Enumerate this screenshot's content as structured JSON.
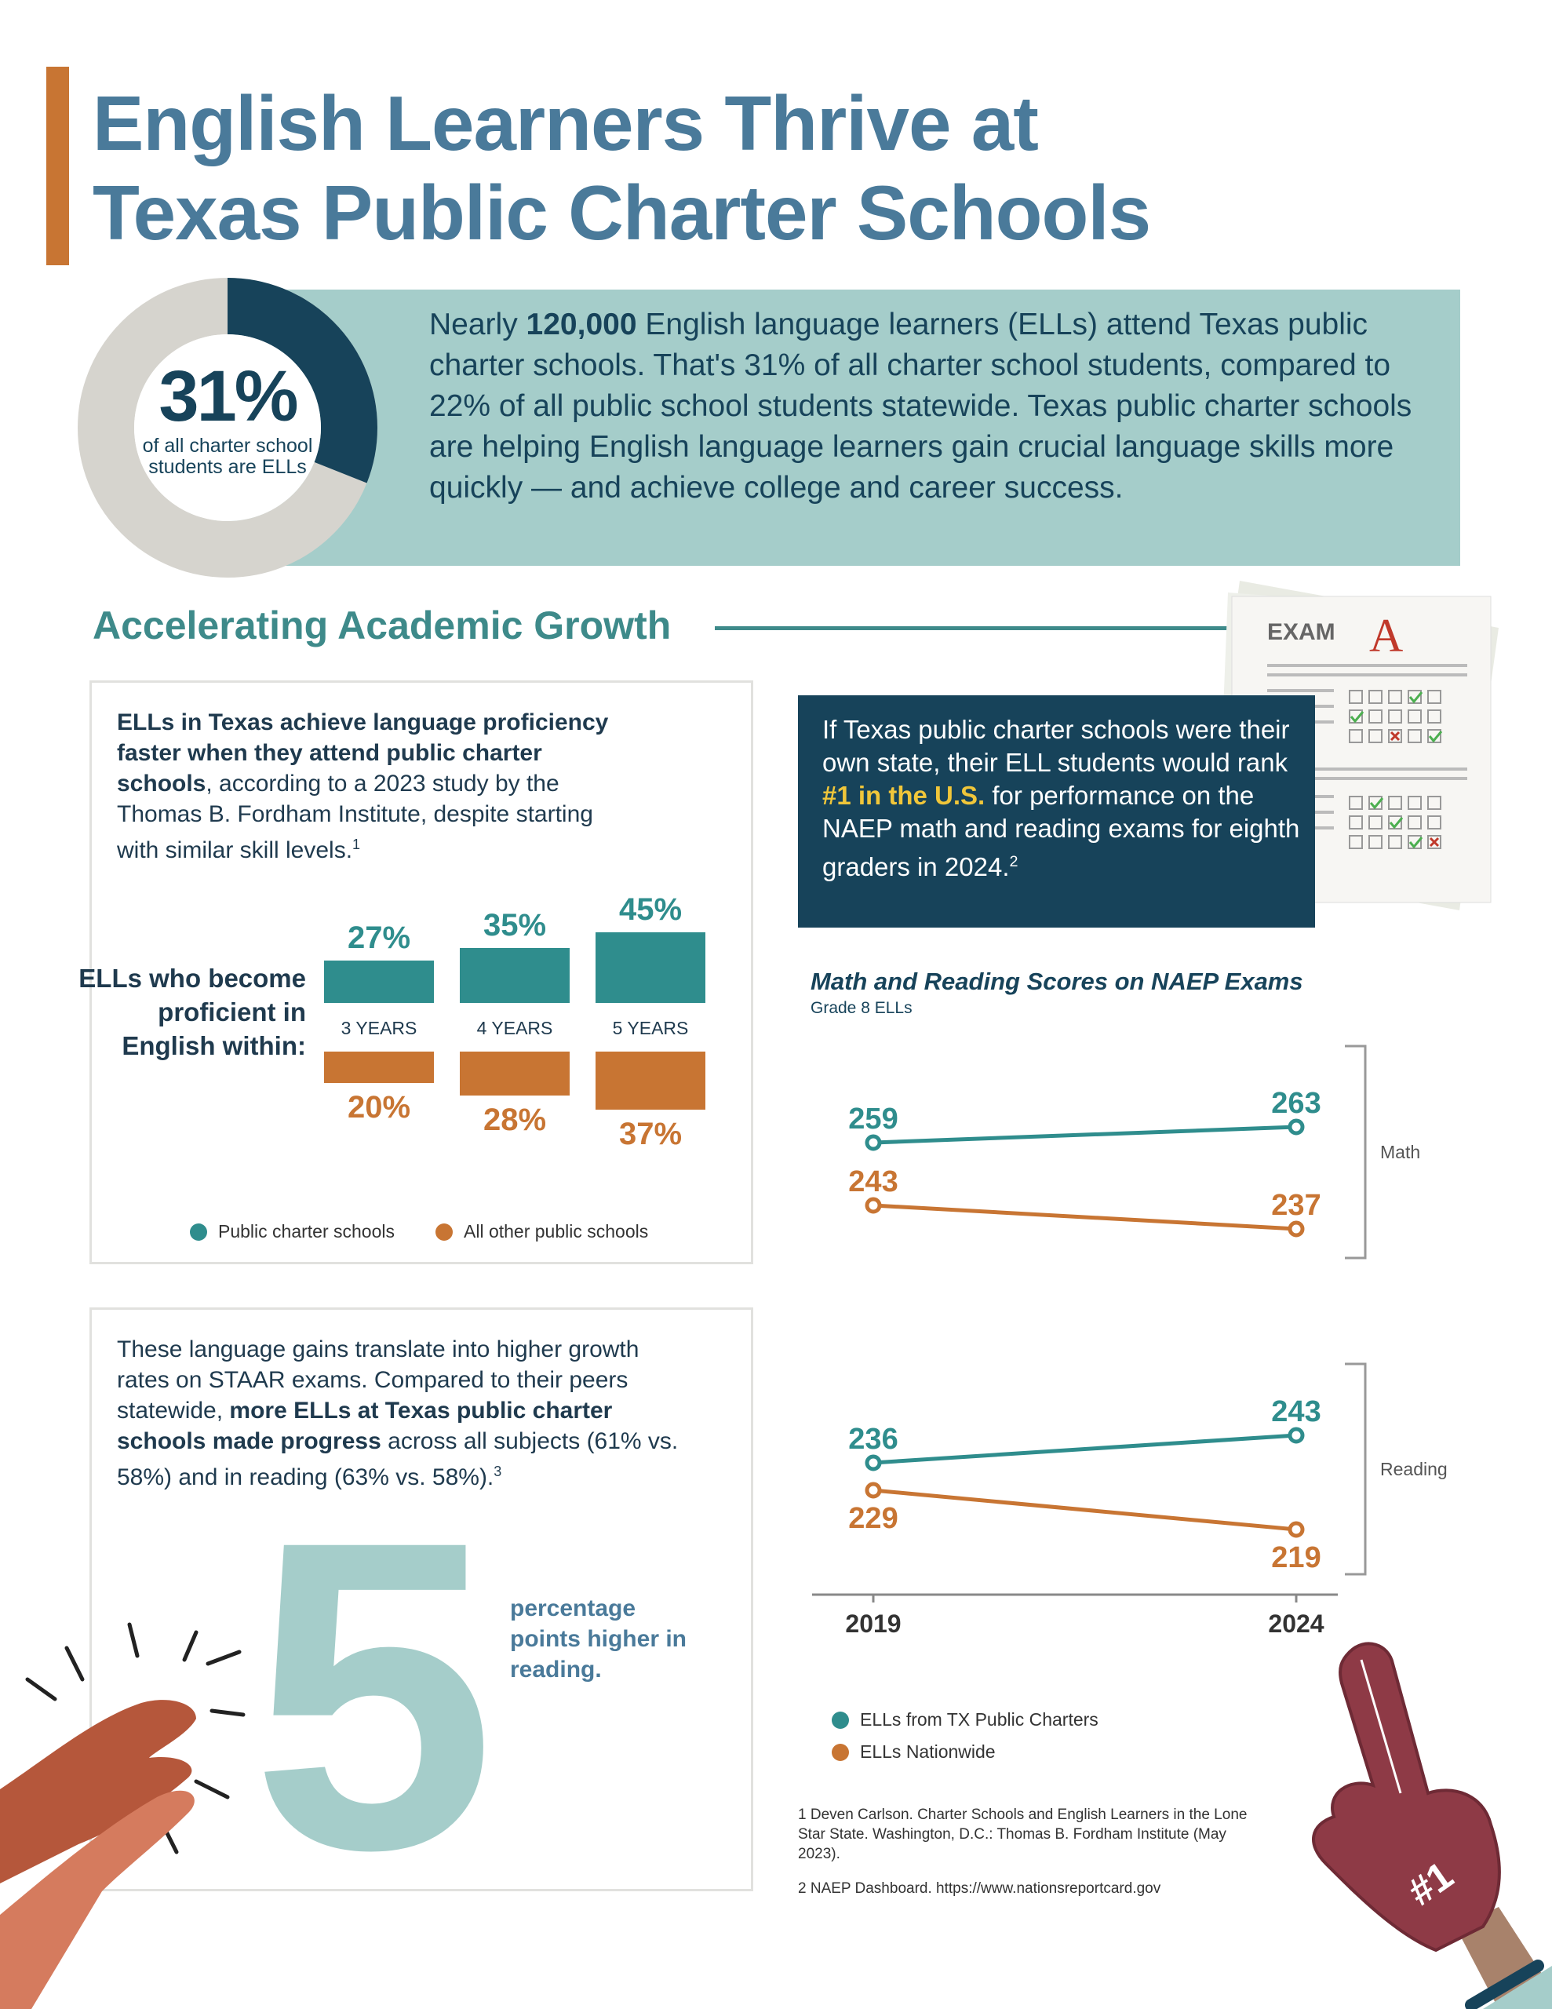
{
  "header": {
    "title_line1": "English Learners Thrive at",
    "title_line2": "Texas Public Charter Schools"
  },
  "intro": {
    "donut_pct": "31%",
    "donut_value": 31,
    "donut_caption": "of all charter school students are ELLs",
    "text_pre": "Nearly ",
    "text_bold": "120,000",
    "text_post": " English language learners (ELLs) attend Texas public charter schools. That's 31% of all charter school students, compared to 22% of all public school students statewide. Texas public charter schools are helping English language learners gain crucial language skills more quickly — and achieve college and career success."
  },
  "section": {
    "title": "Accelerating Academic Growth"
  },
  "exam": {
    "label": "EXAM",
    "grade": "A"
  },
  "card1": {
    "text_bold": "ELLs in Texas achieve language proficiency faster when they attend public charter schools",
    "text_post": ", according to a 2023 study by the Thomas B. Fordham Institute, despite starting with similar skill levels.",
    "footnote_ref": "1",
    "row_label": "ELLs who become proficient in English within:",
    "legend": [
      "Public charter schools",
      "All other public schools"
    ]
  },
  "chart_data": [
    {
      "type": "bar",
      "title": "ELLs who become proficient in English within:",
      "categories": [
        "3 YEARS",
        "4 YEARS",
        "5 YEARS"
      ],
      "series": [
        {
          "name": "Public charter schools",
          "values": [
            27,
            35,
            45
          ],
          "labels": [
            "27%",
            "35%",
            "45%"
          ],
          "color": "#2f8d8d"
        },
        {
          "name": "All other public schools",
          "values": [
            20,
            28,
            37
          ],
          "labels": [
            "20%",
            "28%",
            "37%"
          ],
          "color": "#c87533"
        }
      ]
    },
    {
      "type": "line",
      "title": "Math and Reading Scores on NAEP Exams",
      "subtitle": "Grade 8 ELLs",
      "x": [
        "2019",
        "2024"
      ],
      "panels": [
        {
          "name": "Math",
          "series": [
            {
              "name": "ELLs from TX Public Charters",
              "values": [
                259,
                263
              ]
            },
            {
              "name": "ELLs Nationwide",
              "values": [
                243,
                237
              ]
            }
          ]
        },
        {
          "name": "Reading",
          "series": [
            {
              "name": "ELLs from TX Public Charters",
              "values": [
                236,
                243
              ]
            },
            {
              "name": "ELLs Nationwide",
              "values": [
                229,
                219
              ]
            }
          ]
        }
      ],
      "legend": [
        "ELLs from TX Public Charters",
        "ELLs Nationwide"
      ],
      "colors": [
        "#2f8d8d",
        "#c87533"
      ]
    }
  ],
  "card2": {
    "text_pre": "These language gains translate into higher growth rates on STAAR exams. Compared to their peers statewide, ",
    "text_bold": "more ELLs at Texas public charter schools made progress",
    "text_post": " across all subjects (61% vs. 58%) and in reading (63% vs. 58%).",
    "footnote_ref": "3",
    "big_number": "5",
    "big_caption": "percentage points higher in reading."
  },
  "rank": {
    "text_pre": "If Texas public charter schools were their own state, their ELL students would rank ",
    "text_highlight": "#1 in the U.S.",
    "text_post": " for performance on the NAEP math and reading exams for eighth graders in 2024.",
    "footnote_ref": "2"
  },
  "footnotes": {
    "fn1": "1 Deven Carlson. Charter Schools and English Learners in the Lone Star State. Washington, D.C.: Thomas B. Fordham Institute (May 2023).",
    "fn2_pre": "2 NAEP Dashboard. ",
    "fn2_link": "https://www.nationsreportcard.gov"
  },
  "foam_finger": {
    "label": "#1"
  },
  "colors": {
    "teal": "#2f8d8d",
    "orange": "#c87533",
    "navy": "#17435a",
    "title": "#4a7a9a",
    "mint": "#a5cdca"
  }
}
